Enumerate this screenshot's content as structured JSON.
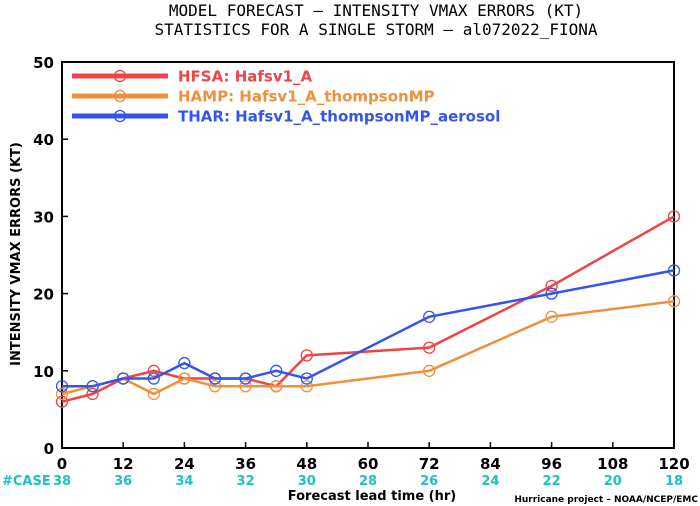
{
  "chart_data": {
    "type": "line",
    "title_line1": "MODEL FORECAST – INTENSITY VMAX ERRORS (KT)",
    "title_line2": "STATISTICS FOR A SINGLE STORM – al072022_FIONA",
    "xlabel": "Forecast lead time (hr)",
    "ylabel": "INTENSITY VMAX ERRORS (KT)",
    "xlim": [
      0,
      120
    ],
    "ylim": [
      0,
      50
    ],
    "x_ticks": [
      0,
      12,
      24,
      36,
      48,
      60,
      72,
      84,
      96,
      108,
      120
    ],
    "y_ticks": [
      0,
      10,
      20,
      30,
      40,
      50
    ],
    "grid": false,
    "legend_position": "top-left",
    "case_label": "#CASE",
    "case_counts": [
      38,
      36,
      34,
      32,
      30,
      28,
      26,
      24,
      22,
      20,
      18
    ],
    "credit": "Hurricane project – NOAA/NCEP/EMC",
    "series": [
      {
        "name": "HFSA:  Hafsv1_A",
        "color": "#ee4444",
        "x": [
          0,
          6,
          12,
          18,
          24,
          30,
          36,
          42,
          48,
          72,
          96,
          120
        ],
        "y": [
          6,
          7,
          9,
          10,
          9,
          9,
          9,
          8,
          12,
          13,
          21,
          30
        ]
      },
      {
        "name": "HAMP:  Hafsv1_A_thompsonMP",
        "color": "#f0903a",
        "x": [
          0,
          6,
          12,
          18,
          24,
          30,
          36,
          42,
          48,
          72,
          96,
          120
        ],
        "y": [
          7,
          8,
          9,
          7,
          9,
          8,
          8,
          8,
          8,
          10,
          17,
          19
        ]
      },
      {
        "name": "THAR:  Hafsv1_A_thompsonMP_aerosol",
        "color": "#3355ee",
        "x": [
          0,
          6,
          12,
          18,
          24,
          30,
          36,
          42,
          48,
          72,
          96,
          120
        ],
        "y": [
          8,
          8,
          9,
          9,
          11,
          9,
          9,
          10,
          9,
          17,
          20,
          23
        ]
      }
    ]
  }
}
